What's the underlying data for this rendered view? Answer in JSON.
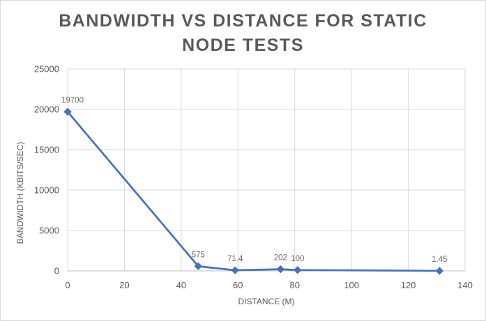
{
  "chart_data": {
    "type": "line",
    "title": [
      "BANDWIDTH VS DISTANCE FOR STATIC",
      "NODE TESTS"
    ],
    "xlabel": "DISTANCE (M)",
    "ylabel": "BANDWIDTH (KBITS/SEC)",
    "xlim": [
      0,
      140
    ],
    "ylim": [
      0,
      25000
    ],
    "x_ticks": [
      0,
      20,
      40,
      60,
      80,
      100,
      120,
      140
    ],
    "y_ticks": [
      0,
      5000,
      10000,
      15000,
      20000,
      25000
    ],
    "grid": true,
    "legend": "none",
    "series": [
      {
        "color": "#4472c4",
        "marker": "diamond",
        "points": [
          {
            "x": 0,
            "y": 19700,
            "label": "19700"
          },
          {
            "x": 46,
            "y": 575,
            "label": "575"
          },
          {
            "x": 59,
            "y": 71.4,
            "label": "71.4"
          },
          {
            "x": 75,
            "y": 202,
            "label": "202"
          },
          {
            "x": 81,
            "y": 100,
            "label": "100"
          },
          {
            "x": 131,
            "y": 1.45,
            "label": "1.45"
          }
        ]
      }
    ]
  },
  "colors": {
    "grid": "#d9d9d9",
    "axis": "#bfbfbf",
    "text": "#595959",
    "series": "#4472c4"
  }
}
